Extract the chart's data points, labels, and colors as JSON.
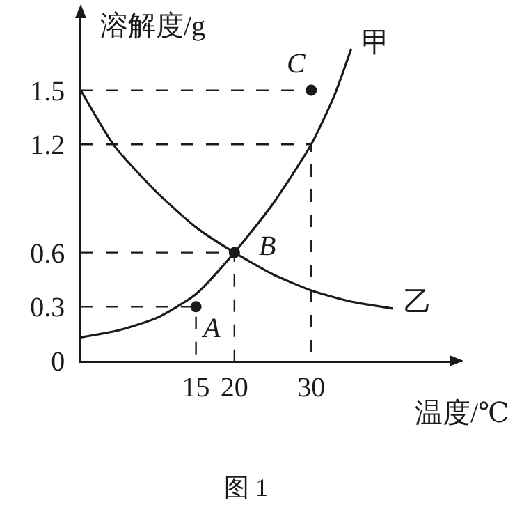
{
  "chart_data": {
    "type": "line",
    "xlabel": "温度/℃",
    "ylabel": "溶解度/g",
    "xlim": [
      0,
      48
    ],
    "ylim": [
      0,
      1.9
    ],
    "xticks": [
      15,
      20,
      30
    ],
    "yticks": [
      0,
      0.3,
      0.6,
      1.2,
      1.5
    ],
    "grid": false,
    "legend": false,
    "marker": "none",
    "series": [
      {
        "name": "甲",
        "color": "#1a1a1a",
        "x": [
          0,
          5,
          10,
          15,
          20,
          25,
          30,
          33,
          35.2
        ],
        "values": [
          0.13,
          0.17,
          0.24,
          0.37,
          0.6,
          0.87,
          1.2,
          1.47,
          1.73
        ]
      },
      {
        "name": "乙",
        "color": "#1a1a1a",
        "x": [
          0,
          4.4,
          10,
          15,
          20,
          25,
          30,
          35,
          40.6
        ],
        "values": [
          1.5,
          1.19,
          0.93,
          0.74,
          0.6,
          0.48,
          0.39,
          0.33,
          0.29
        ]
      },
      {
        "type": "line",
        "line_style": "dashed",
        "color": "#1a1a1a",
        "x": [
          0,
          15,
          15,
          null,
          0,
          20,
          20,
          null,
          0,
          30,
          30,
          null,
          0,
          30
        ],
        "values": [
          0.3,
          0.3,
          0,
          null,
          0.6,
          0.6,
          0,
          null,
          1.2,
          1.2,
          0,
          null,
          1.5,
          1.5
        ]
      },
      {
        "type": "scatter",
        "marker": "circle",
        "color": "#1a1a1a",
        "x": [
          15,
          20,
          30
        ],
        "values": [
          0.3,
          0.6,
          1.5
        ]
      }
    ],
    "annotations": [
      {
        "text": "A",
        "x": 15,
        "y": 0.3
      },
      {
        "text": "B",
        "x": 20,
        "y": 0.6
      },
      {
        "text": "C",
        "x": 30,
        "y": 1.5
      },
      "图 1"
    ]
  }
}
